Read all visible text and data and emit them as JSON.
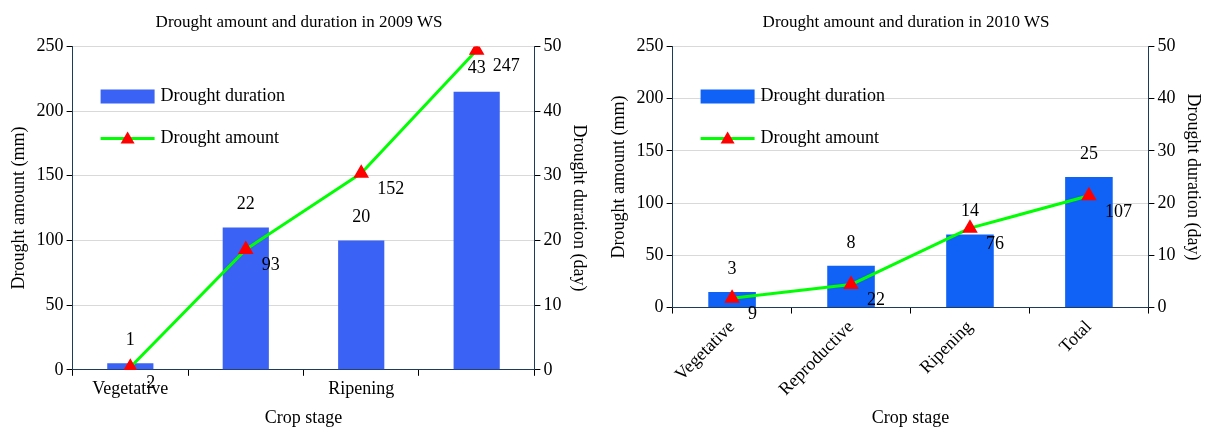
{
  "chart_data": [
    {
      "type": "bar",
      "title": "Drought amount and duration in 2009 WS",
      "xlabel": "Crop stage",
      "ylabel": "Drought amount (mm)",
      "y2label": "Drought duration (day)",
      "categories": [
        "Vegetative",
        null,
        "Ripening",
        null
      ],
      "series": [
        {
          "name": "Drought duration",
          "type": "bar",
          "axis": "y2",
          "color": "#3a62f5",
          "values": [
            1,
            22,
            20,
            43
          ]
        },
        {
          "name": "Drought amount",
          "type": "line",
          "color": "#00ff00",
          "values": [
            2,
            93,
            152,
            247
          ]
        }
      ],
      "ylim": [
        0,
        250
      ],
      "yticks": [
        0,
        50,
        100,
        150,
        200,
        250
      ],
      "y2lim": [
        0,
        50
      ],
      "y2ticks": [
        0,
        10,
        20,
        30,
        40,
        50
      ],
      "grid": "y",
      "legend": "top left",
      "marker": "triangle",
      "data_labels": true
    },
    {
      "type": "bar",
      "title": "Drought amount and duration in 2010 WS",
      "xlabel": "Crop stage",
      "ylabel": "Drought amount (mm)",
      "y2label": "Drought duration (day)",
      "categories": [
        "Vegetative",
        "Reproductive",
        "Ripening",
        "Total"
      ],
      "series": [
        {
          "name": "Drought duration",
          "type": "bar",
          "axis": "y2",
          "color": "#0f62f5",
          "values": [
            3,
            8,
            14,
            25
          ]
        },
        {
          "name": "Drought amount",
          "type": "line",
          "color": "#00ff00",
          "values": [
            9,
            22,
            76,
            107
          ]
        }
      ],
      "ylim": [
        0,
        250
      ],
      "yticks": [
        0,
        50,
        100,
        150,
        200,
        250
      ],
      "y2lim": [
        0,
        50
      ],
      "y2ticks": [
        0,
        10,
        20,
        30,
        40,
        50
      ],
      "grid": "y",
      "legend": "top left",
      "marker": "triangle",
      "data_labels": true
    }
  ]
}
